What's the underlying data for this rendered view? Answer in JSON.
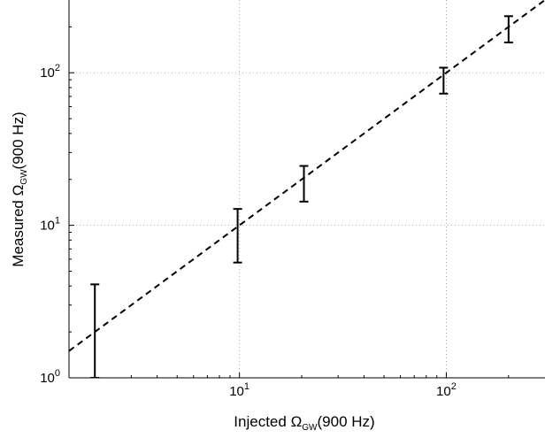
{
  "chart_data": {
    "type": "scatter",
    "title": "",
    "xlabel": {
      "prefix": "Injected ",
      "symbol": "Ω",
      "subscript": "GW",
      "suffix": "(900 Hz)"
    },
    "ylabel": {
      "prefix": "Measured ",
      "symbol": "Ω",
      "subscript": "GW",
      "suffix": "(900 Hz)"
    },
    "xscale": "log",
    "yscale": "log",
    "xlim": [
      1.5,
      300
    ],
    "ylim": [
      1,
      300
    ],
    "grid": true,
    "x_ticks": [
      {
        "base": "10",
        "exp": "1",
        "value": 10
      },
      {
        "base": "10",
        "exp": "2",
        "value": 100
      }
    ],
    "y_ticks": [
      {
        "base": "10",
        "exp": "0",
        "value": 1
      },
      {
        "base": "10",
        "exp": "1",
        "value": 10
      },
      {
        "base": "10",
        "exp": "2",
        "value": 100
      }
    ],
    "series": [
      {
        "style": "errorbar",
        "points": [
          {
            "x": 2,
            "y": 2,
            "ylow": 1,
            "yhigh": 4.1
          },
          {
            "x": 9.8,
            "y": 9.7,
            "ylow": 5.7,
            "yhigh": 12.8
          },
          {
            "x": 20.5,
            "y": 19.5,
            "ylow": 14.3,
            "yhigh": 24.5
          },
          {
            "x": 97,
            "y": 92,
            "ylow": 73,
            "yhigh": 108
          },
          {
            "x": 200,
            "y": 195,
            "ylow": 158,
            "yhigh": 235
          }
        ]
      },
      {
        "style": "dashed-line",
        "points": [
          {
            "x": 1.5,
            "y": 1.5
          },
          {
            "x": 300,
            "y": 300
          }
        ]
      }
    ]
  }
}
